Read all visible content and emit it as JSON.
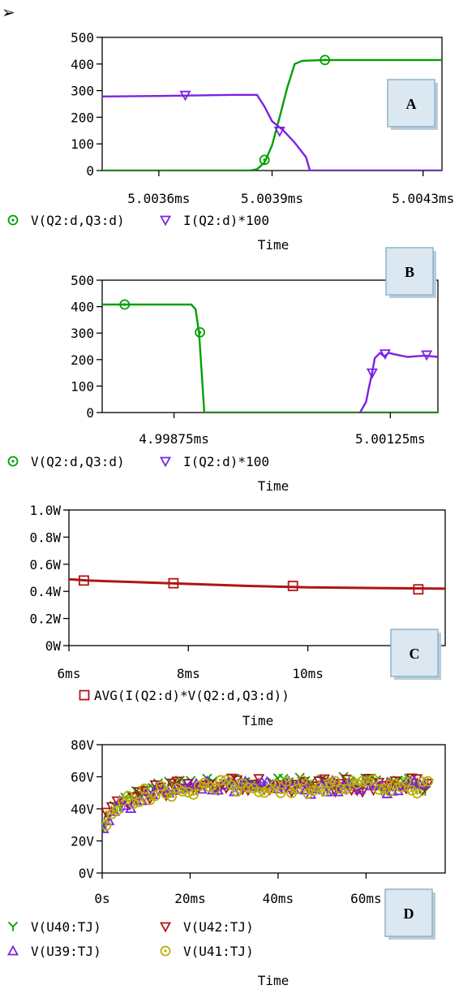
{
  "bullet": "➢",
  "colors": {
    "green": "#00a000",
    "purple": "#7b22e6",
    "darkred": "#b01515",
    "olive": "#b8b000",
    "badge_fill": "#dbe8f1",
    "badge_border": "#8fb3c9"
  },
  "chart_data": [
    {
      "id": "A",
      "type": "line",
      "badge": "A",
      "xlabel": "Time",
      "ylim": [
        0,
        500
      ],
      "xlim": [
        5.00345,
        5.00435
      ],
      "xticks": [
        {
          "v": 5.0036,
          "label": "5.0036ms"
        },
        {
          "v": 5.0039,
          "label": "5.0039ms"
        },
        {
          "v": 5.0043,
          "label": "5.0043ms"
        }
      ],
      "yticks": [
        {
          "v": 0,
          "label": "0"
        },
        {
          "v": 100,
          "label": "100"
        },
        {
          "v": 200,
          "label": "200"
        },
        {
          "v": 300,
          "label": "300"
        },
        {
          "v": 400,
          "label": "400"
        },
        {
          "v": 500,
          "label": "500"
        }
      ],
      "series": [
        {
          "name": "V(Q2:d,Q3:d)",
          "marker": "circle",
          "color": "#00a000",
          "points": [
            [
              5.00345,
              0
            ],
            [
              5.00384,
              0
            ],
            [
              5.00386,
              5
            ],
            [
              5.00388,
              30
            ],
            [
              5.0039,
              95
            ],
            [
              5.00392,
              200
            ],
            [
              5.00394,
              310
            ],
            [
              5.00396,
              400
            ],
            [
              5.00398,
              412
            ],
            [
              5.00404,
              415
            ],
            [
              5.00435,
              415
            ]
          ],
          "markers": [
            [
              5.00388,
              40
            ],
            [
              5.00404,
              415
            ]
          ]
        },
        {
          "name": "I(Q2:d)*100",
          "marker": "tri-down",
          "color": "#7b22e6",
          "points": [
            [
              5.00345,
              278
            ],
            [
              5.0036,
              280
            ],
            [
              5.0038,
              284
            ],
            [
              5.00386,
              284
            ],
            [
              5.00388,
              240
            ],
            [
              5.0039,
              185
            ],
            [
              5.00393,
              150
            ],
            [
              5.00396,
              105
            ],
            [
              5.00399,
              50
            ],
            [
              5.004,
              0
            ],
            [
              5.00435,
              0
            ]
          ],
          "markers": [
            [
              5.00367,
              283
            ],
            [
              5.00392,
              148
            ]
          ]
        }
      ]
    },
    {
      "id": "B",
      "type": "line",
      "badge": "B",
      "xlabel": "Time",
      "ylim": [
        0,
        500
      ],
      "xlim": [
        4.99792,
        5.0018
      ],
      "xticks": [
        {
          "v": 4.99875,
          "label": "4.99875ms"
        },
        {
          "v": 5.00125,
          "label": "5.00125ms"
        }
      ],
      "yticks": [
        {
          "v": 0,
          "label": "0"
        },
        {
          "v": 100,
          "label": "100"
        },
        {
          "v": 200,
          "label": "200"
        },
        {
          "v": 300,
          "label": "300"
        },
        {
          "v": 400,
          "label": "400"
        },
        {
          "v": 500,
          "label": "500"
        }
      ],
      "series": [
        {
          "name": "V(Q2:d,Q3:d)",
          "marker": "circle",
          "color": "#00a000",
          "points": [
            [
              4.99792,
              408
            ],
            [
              4.99895,
              408
            ],
            [
              4.999,
              390
            ],
            [
              4.99904,
              300
            ],
            [
              4.99908,
              100
            ],
            [
              4.9991,
              0
            ],
            [
              5.0018,
              0
            ]
          ],
          "markers": [
            [
              4.99818,
              408
            ],
            [
              4.99905,
              303
            ]
          ]
        },
        {
          "name": "I(Q2:d)*100",
          "marker": "tri-down",
          "color": "#7b22e6",
          "points": [
            [
              5.0009,
              0
            ],
            [
              5.00097,
              40
            ],
            [
              5.001,
              90
            ],
            [
              5.00104,
              150
            ],
            [
              5.00107,
              205
            ],
            [
              5.00113,
              225
            ],
            [
              5.00118,
              212
            ],
            [
              5.00123,
              225
            ],
            [
              5.0013,
              220
            ],
            [
              5.00145,
              210
            ],
            [
              5.00165,
              215
            ],
            [
              5.0018,
              210
            ]
          ],
          "markers": [
            [
              5.00104,
              150
            ],
            [
              5.00119,
              222
            ],
            [
              5.00167,
              218
            ]
          ]
        }
      ]
    },
    {
      "id": "C",
      "type": "line",
      "badge": "C",
      "xlabel": "Time",
      "ylim": [
        0,
        1.0
      ],
      "xlim": [
        6,
        12.3
      ],
      "xticks": [
        {
          "v": 6,
          "label": "6ms"
        },
        {
          "v": 8,
          "label": "8ms"
        },
        {
          "v": 10,
          "label": "10ms"
        }
      ],
      "yticks": [
        {
          "v": 0,
          "label": "0W"
        },
        {
          "v": 0.2,
          "label": "0.2W"
        },
        {
          "v": 0.4,
          "label": "0.4W"
        },
        {
          "v": 0.6,
          "label": "0.6W"
        },
        {
          "v": 0.8,
          "label": "0.8W"
        },
        {
          "v": 1.0,
          "label": "1.0W"
        }
      ],
      "series": [
        {
          "name": "AVG(I(Q2:d)*V(Q2:d,Q3:d))",
          "marker": "square",
          "color": "#b01515",
          "points": [
            [
              6,
              0.49
            ],
            [
              6.3,
              0.48
            ],
            [
              7,
              0.47
            ],
            [
              8,
              0.455
            ],
            [
              9,
              0.44
            ],
            [
              10,
              0.43
            ],
            [
              11,
              0.425
            ],
            [
              12.3,
              0.42
            ]
          ],
          "markers": [
            [
              6.25,
              0.48
            ],
            [
              7.75,
              0.46
            ],
            [
              9.75,
              0.44
            ],
            [
              11.85,
              0.415
            ]
          ]
        }
      ]
    },
    {
      "id": "D",
      "type": "scatter",
      "badge": "D",
      "xlabel": "Time",
      "ylim": [
        0,
        80
      ],
      "xlim": [
        0,
        78
      ],
      "xticks": [
        {
          "v": 0,
          "label": "0s"
        },
        {
          "v": 20,
          "label": "20ms"
        },
        {
          "v": 40,
          "label": "40ms"
        },
        {
          "v": 60,
          "label": "60ms"
        }
      ],
      "yticks": [
        {
          "v": 0,
          "label": "0V"
        },
        {
          "v": 20,
          "label": "20V"
        },
        {
          "v": 40,
          "label": "40V"
        },
        {
          "v": 60,
          "label": "60V"
        },
        {
          "v": 80,
          "label": "80V"
        }
      ],
      "series": [
        {
          "name": "V(U40:TJ)",
          "marker": "y",
          "color": "#00a000",
          "base_offset": 1.5
        },
        {
          "name": "V(U42:TJ)",
          "marker": "tri-down",
          "color": "#b01515",
          "base_offset": 1.0
        },
        {
          "name": "V(U39:TJ)",
          "marker": "tri-up",
          "color": "#7b22e6",
          "base_offset": -0.5
        },
        {
          "name": "V(U41:TJ)",
          "marker": "circle",
          "color": "#b8b000",
          "base_offset": 0
        }
      ]
    }
  ],
  "legends": {
    "A": [
      {
        "series": "V(Q2:d,Q3:d)"
      },
      {
        "series": "I(Q2:d)*100"
      }
    ],
    "B": [
      {
        "series": "V(Q2:d,Q3:d)"
      },
      {
        "series": "I(Q2:d)*100"
      }
    ],
    "C": [
      {
        "series": "AVG(I(Q2:d)*V(Q2:d,Q3:d))"
      }
    ],
    "D": [
      {
        "series": "V(U40:TJ)"
      },
      {
        "series": "V(U42:TJ)"
      },
      {
        "series": "V(U39:TJ)"
      },
      {
        "series": "V(U41:TJ)"
      }
    ]
  }
}
